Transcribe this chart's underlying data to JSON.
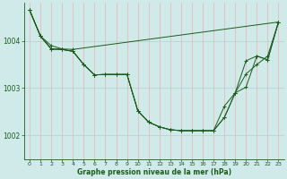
{
  "bg_color": "#d0eaea",
  "grid_color_v": "#e8b8b8",
  "grid_color_h": "#b8d4d4",
  "line_color": "#1a5c1a",
  "xlabel": "Graphe pression niveau de la mer (hPa)",
  "ylim": [
    1001.5,
    1004.8
  ],
  "xlim": [
    -0.5,
    23.5
  ],
  "yticks": [
    1002,
    1003,
    1004
  ],
  "xticks": [
    0,
    1,
    2,
    3,
    4,
    5,
    6,
    7,
    8,
    9,
    10,
    11,
    12,
    13,
    14,
    15,
    16,
    17,
    18,
    19,
    20,
    21,
    22,
    23
  ],
  "series1_x": [
    0,
    1,
    2,
    3,
    4,
    23
  ],
  "series1_y": [
    1004.65,
    1004.1,
    1003.9,
    1003.83,
    1003.82,
    1004.4
  ],
  "series2_x": [
    0,
    1,
    2,
    3,
    4,
    5,
    6,
    7,
    8,
    9,
    10,
    11,
    12,
    13,
    14,
    15,
    16,
    17,
    18,
    19,
    20,
    21,
    22,
    23
  ],
  "series2_y": [
    1004.65,
    1004.1,
    1003.83,
    1003.82,
    1003.78,
    1003.5,
    1003.28,
    1003.29,
    1003.29,
    1003.29,
    1002.52,
    1002.28,
    1002.18,
    1002.12,
    1002.1,
    1002.1,
    1002.1,
    1002.1,
    1002.38,
    1002.9,
    1003.58,
    1003.68,
    1003.6,
    1004.4
  ],
  "series3_x": [
    0,
    1,
    2,
    3,
    4,
    5,
    6,
    7,
    8,
    9,
    10,
    11,
    12,
    13,
    14,
    15,
    16,
    17,
    18,
    19,
    20,
    21,
    22,
    23
  ],
  "series3_y": [
    1004.65,
    1004.1,
    1003.83,
    1003.82,
    1003.78,
    1003.5,
    1003.28,
    1003.29,
    1003.29,
    1003.29,
    1002.52,
    1002.28,
    1002.18,
    1002.12,
    1002.1,
    1002.1,
    1002.1,
    1002.1,
    1002.38,
    1002.9,
    1003.02,
    1003.68,
    1003.6,
    1004.4
  ],
  "series4_x": [
    0,
    1,
    2,
    3,
    4,
    5,
    6,
    7,
    8,
    9,
    10,
    11,
    12,
    13,
    14,
    15,
    16,
    17,
    18,
    19,
    20,
    21,
    22,
    23
  ],
  "series4_y": [
    1004.65,
    1004.1,
    1003.83,
    1003.82,
    1003.78,
    1003.5,
    1003.28,
    1003.29,
    1003.29,
    1003.29,
    1002.52,
    1002.28,
    1002.18,
    1002.12,
    1002.1,
    1002.1,
    1002.1,
    1002.1,
    1002.62,
    1002.9,
    1003.3,
    1003.5,
    1003.68,
    1004.4
  ]
}
